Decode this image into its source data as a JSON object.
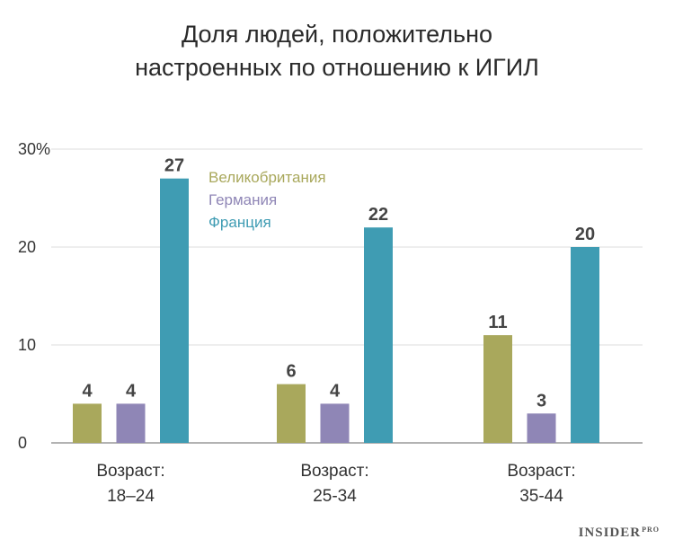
{
  "title_line1": "Доля людей, положительно",
  "title_line2": "настроенных по отношению к ИГИЛ",
  "brand": "INSIDER",
  "brand_sup": "PRO",
  "chart_data": {
    "type": "bar",
    "categories": [
      [
        "Возраст:",
        "18–24"
      ],
      [
        "Возраст:",
        "25-34"
      ],
      [
        "Возраст:",
        "35-44"
      ]
    ],
    "series": [
      {
        "name": "Великобритания",
        "color": "#a9a85c",
        "values": [
          4,
          6,
          11
        ]
      },
      {
        "name": "Германия",
        "color": "#8f86b6",
        "values": [
          4,
          4,
          3
        ]
      },
      {
        "name": "Франция",
        "color": "#3f9cb3",
        "values": [
          27,
          22,
          20
        ]
      }
    ],
    "ylim": [
      0,
      30
    ],
    "yticks": [
      0,
      10,
      20,
      30
    ],
    "ytick_labels": [
      "0",
      "10",
      "20",
      "30%"
    ],
    "grid": true,
    "legend_position": "top-left inside plot"
  }
}
